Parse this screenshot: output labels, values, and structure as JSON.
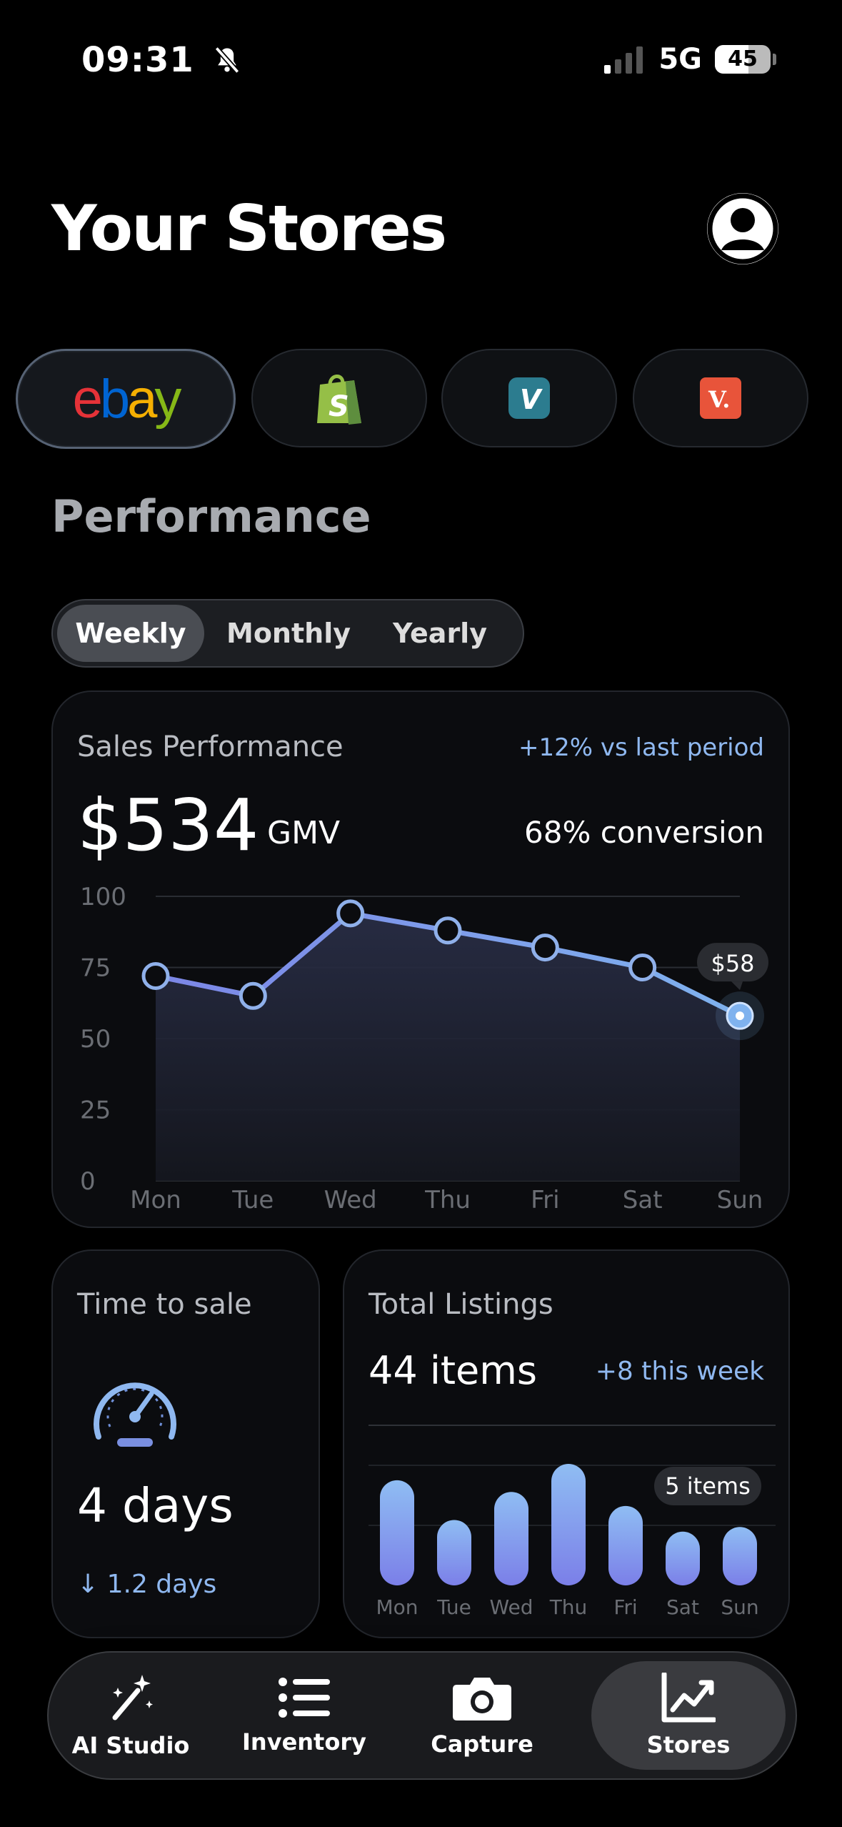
{
  "status": {
    "time": "09:31",
    "network": "5G",
    "battery": "45"
  },
  "header": {
    "title": "Your Stores"
  },
  "stores": [
    {
      "name": "ebay",
      "icon": "ebay-logo",
      "selected": true
    },
    {
      "name": "Shopify",
      "icon": "shopify-bag-icon",
      "selected": false
    },
    {
      "name": "Vinted",
      "icon": "vinted-v-icon",
      "selected": false
    },
    {
      "name": "Vestiaire",
      "icon": "vestiaire-v-icon",
      "selected": false
    }
  ],
  "performance": {
    "title": "Performance",
    "periods": [
      "Weekly",
      "Monthly",
      "Yearly"
    ],
    "selected_period": "Weekly"
  },
  "sales_card": {
    "label": "Sales Performance",
    "change": "+12% vs last period",
    "amount": "$534",
    "amount_unit": "GMV",
    "conversion": "68% conversion",
    "tooltip": "$58"
  },
  "chart_data": [
    {
      "type": "line",
      "categories": [
        "Mon",
        "Tue",
        "Wed",
        "Thu",
        "Fri",
        "Sat",
        "Sun"
      ],
      "values": [
        72,
        65,
        94,
        88,
        82,
        75,
        58
      ],
      "yticks": [
        "100",
        "75",
        "50",
        "25",
        "0"
      ],
      "ylim": [
        0,
        100
      ],
      "grid": true,
      "highlight": {
        "category": "Sun",
        "label": "$58"
      }
    },
    {
      "type": "bar",
      "categories": [
        "Mon",
        "Tue",
        "Wed",
        "Thu",
        "Fri",
        "Sat",
        "Sun"
      ],
      "values": [
        9,
        5.6,
        8,
        10.4,
        6.8,
        4.6,
        5
      ],
      "highlight": {
        "category": "Sun",
        "label": "5 items"
      }
    }
  ],
  "time_card": {
    "label": "Time to sale",
    "value": "4 days",
    "delta": "↓ 1.2 days"
  },
  "listings_card": {
    "label": "Total Listings",
    "value": "44 items",
    "change": "+8 this week",
    "tooltip": "5 items"
  },
  "nav": [
    {
      "label": "AI Studio",
      "icon": "magic-wand-icon"
    },
    {
      "label": "Inventory",
      "icon": "list-icon"
    },
    {
      "label": "Capture",
      "icon": "camera-icon"
    },
    {
      "label": "Stores",
      "icon": "chart-line-icon",
      "selected": true
    }
  ],
  "colors": {
    "accent": "#8fb8f0",
    "line": "#7fb2ee",
    "bar": "#7b7fe8"
  }
}
